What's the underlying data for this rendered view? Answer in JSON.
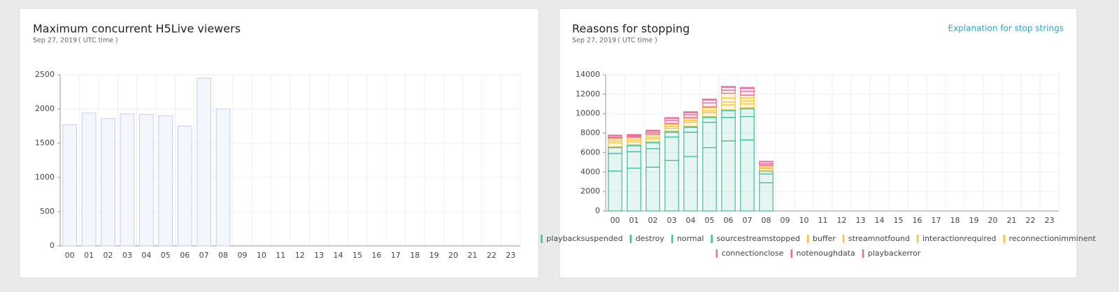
{
  "chart_data": [
    {
      "type": "bar",
      "title": "Maximum concurrent H5Live viewers",
      "date": "Sep 27, 2019",
      "timezone": "( UTC time )",
      "categories": [
        "00",
        "01",
        "02",
        "03",
        "04",
        "05",
        "06",
        "07",
        "08",
        "09",
        "10",
        "11",
        "12",
        "13",
        "14",
        "15",
        "16",
        "17",
        "18",
        "19",
        "20",
        "21",
        "22",
        "23"
      ],
      "values": [
        1770,
        1940,
        1860,
        1930,
        1920,
        1900,
        1750,
        2450,
        2000,
        null,
        null,
        null,
        null,
        null,
        null,
        null,
        null,
        null,
        null,
        null,
        null,
        null,
        null,
        null
      ],
      "color": "#c5cde8",
      "ylim": [
        0,
        2500
      ],
      "yticks": [
        0,
        500,
        1000,
        1500,
        2000,
        2500
      ],
      "grid": true
    },
    {
      "type": "stacked_bar",
      "title": "Reasons for stopping",
      "date": "Sep 27, 2019",
      "timezone": "( UTC time )",
      "link": "Explanation for stop strings",
      "categories": [
        "00",
        "01",
        "02",
        "03",
        "04",
        "05",
        "06",
        "07",
        "08",
        "09",
        "10",
        "11",
        "12",
        "13",
        "14",
        "15",
        "16",
        "17",
        "18",
        "19",
        "20",
        "21",
        "22",
        "23"
      ],
      "ylim": [
        0,
        14000
      ],
      "yticks": [
        0,
        2000,
        4000,
        6000,
        8000,
        10000,
        12000,
        14000
      ],
      "grid": true,
      "series": [
        {
          "name": "playbacksuspended",
          "color": "#3dbf9c",
          "values": [
            4100,
            4400,
            4500,
            5200,
            5600,
            6500,
            7200,
            7300,
            2900,
            null,
            null,
            null,
            null,
            null,
            null,
            null,
            null,
            null,
            null,
            null,
            null,
            null,
            null,
            null
          ]
        },
        {
          "name": "destroy",
          "color": "#3dbf9c",
          "values": [
            1800,
            1700,
            1900,
            2400,
            2500,
            2600,
            2400,
            2400,
            900,
            null,
            null,
            null,
            null,
            null,
            null,
            null,
            null,
            null,
            null,
            null,
            null,
            null,
            null,
            null
          ]
        },
        {
          "name": "normal",
          "color": "#3dbf9c",
          "values": [
            600,
            600,
            600,
            500,
            500,
            500,
            700,
            800,
            300,
            null,
            null,
            null,
            null,
            null,
            null,
            null,
            null,
            null,
            null,
            null,
            null,
            null,
            null,
            null
          ]
        },
        {
          "name": "sourcestreamstopped",
          "color": "#3dbf9c",
          "values": [
            100,
            100,
            100,
            100,
            100,
            100,
            100,
            100,
            50,
            null,
            null,
            null,
            null,
            null,
            null,
            null,
            null,
            null,
            null,
            null,
            null,
            null,
            null,
            null
          ]
        },
        {
          "name": "buffer",
          "color": "#f5c33b",
          "values": [
            400,
            300,
            300,
            300,
            400,
            400,
            500,
            400,
            200,
            null,
            null,
            null,
            null,
            null,
            null,
            null,
            null,
            null,
            null,
            null,
            null,
            null,
            null,
            null
          ]
        },
        {
          "name": "streamnotfound",
          "color": "#f5c33b",
          "values": [
            200,
            200,
            200,
            200,
            200,
            200,
            300,
            300,
            100,
            null,
            null,
            null,
            null,
            null,
            null,
            null,
            null,
            null,
            null,
            null,
            null,
            null,
            null,
            null
          ]
        },
        {
          "name": "interactionrequired",
          "color": "#f5c33b",
          "values": [
            200,
            200,
            200,
            200,
            200,
            300,
            400,
            300,
            150,
            null,
            null,
            null,
            null,
            null,
            null,
            null,
            null,
            null,
            null,
            null,
            null,
            null,
            null,
            null
          ]
        },
        {
          "name": "reconnectionimminent",
          "color": "#f5c33b",
          "values": [
            100,
            100,
            100,
            100,
            100,
            100,
            500,
            300,
            100,
            null,
            null,
            null,
            null,
            null,
            null,
            null,
            null,
            null,
            null,
            null,
            null,
            null,
            null,
            null
          ]
        },
        {
          "name": "connectionclose",
          "color": "#e66d9b",
          "values": [
            100,
            100,
            150,
            300,
            300,
            400,
            300,
            400,
            150,
            null,
            null,
            null,
            null,
            null,
            null,
            null,
            null,
            null,
            null,
            null,
            null,
            null,
            null,
            null
          ]
        },
        {
          "name": "notenoughdata",
          "color": "#e66d9b",
          "values": [
            150,
            100,
            150,
            200,
            200,
            300,
            300,
            300,
            200,
            null,
            null,
            null,
            null,
            null,
            null,
            null,
            null,
            null,
            null,
            null,
            null,
            null,
            null,
            null
          ]
        },
        {
          "name": "playbackerror",
          "color": "#e66d9b",
          "values": [
            50,
            50,
            100,
            100,
            100,
            100,
            100,
            100,
            50,
            null,
            null,
            null,
            null,
            null,
            null,
            null,
            null,
            null,
            null,
            null,
            null,
            null,
            null,
            null
          ]
        }
      ]
    }
  ]
}
